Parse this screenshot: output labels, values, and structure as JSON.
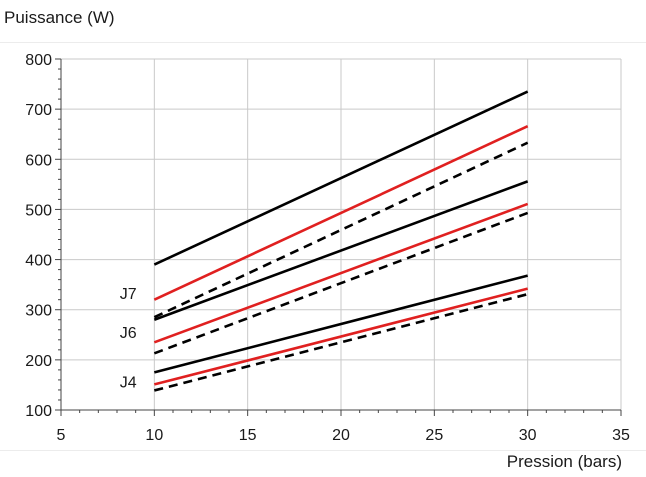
{
  "chart_data": {
    "type": "line",
    "ylabel": "Puissance (W)",
    "xlabel": "Pression (bars)",
    "xlim": [
      5,
      35
    ],
    "ylim": [
      100,
      800
    ],
    "xticks": [
      5,
      10,
      15,
      20,
      25,
      30,
      35
    ],
    "yticks": [
      100,
      200,
      300,
      400,
      500,
      600,
      700,
      800
    ],
    "grid": true,
    "annotations": [
      {
        "text": "J7",
        "x": 8.6,
        "y": 333
      },
      {
        "text": "J6",
        "x": 8.6,
        "y": 256
      },
      {
        "text": "J4",
        "x": 8.6,
        "y": 157
      }
    ],
    "series": [
      {
        "x": [
          10,
          30
        ],
        "y": [
          390,
          735
        ],
        "color": "#000000",
        "dash": "solid"
      },
      {
        "x": [
          10,
          30
        ],
        "y": [
          320,
          666
        ],
        "color": "#e02020",
        "dash": "solid"
      },
      {
        "x": [
          10,
          30
        ],
        "y": [
          285,
          633
        ],
        "color": "#000000",
        "dash": "dashed"
      },
      {
        "x": [
          10,
          30
        ],
        "y": [
          280,
          556
        ],
        "color": "#000000",
        "dash": "solid"
      },
      {
        "x": [
          10,
          30
        ],
        "y": [
          235,
          511
        ],
        "color": "#e02020",
        "dash": "solid"
      },
      {
        "x": [
          10,
          30
        ],
        "y": [
          213,
          493
        ],
        "color": "#000000",
        "dash": "dashed"
      },
      {
        "x": [
          10,
          30
        ],
        "y": [
          175,
          368
        ],
        "color": "#000000",
        "dash": "solid"
      },
      {
        "x": [
          10,
          30
        ],
        "y": [
          151,
          342
        ],
        "color": "#e02020",
        "dash": "solid"
      },
      {
        "x": [
          10,
          30
        ],
        "y": [
          139,
          331
        ],
        "color": "#000000",
        "dash": "dashed"
      }
    ]
  }
}
